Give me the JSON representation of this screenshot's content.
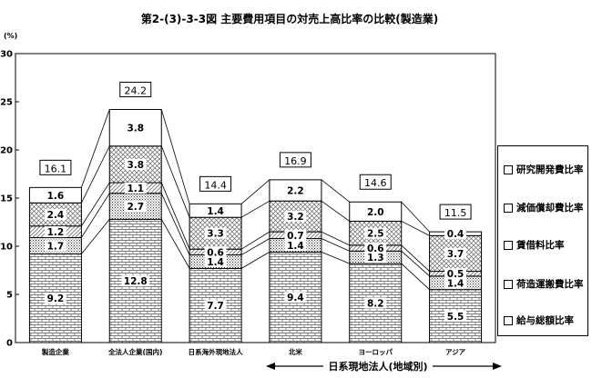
{
  "chart_data": {
    "type": "bar",
    "stacked": true,
    "title": "第2-(3)-3-3図 主要費用項目の対売上高比率の比較(製造業)",
    "ylabel": "(%)",
    "ylim": [
      0,
      30
    ],
    "yticks": [
      "0",
      "5",
      "10",
      "15",
      "20",
      "25",
      "30"
    ],
    "categories": [
      "製造企業",
      "全法人企業(国内)",
      "日系海外現地法人",
      "北米",
      "ヨーロッパ",
      "アジア"
    ],
    "group_label": "日系現地法人(地域別)",
    "totals": [
      16.1,
      24.2,
      14.4,
      16.9,
      14.6,
      11.5
    ],
    "total_labels": [
      "16.1",
      "24.2",
      "14.4",
      "16.9",
      "14.6",
      "11.5"
    ],
    "series": [
      {
        "name": "給与総額比率",
        "pattern": "bricks",
        "values": [
          9.2,
          12.8,
          7.7,
          9.4,
          8.2,
          5.5
        ],
        "labels": [
          "9.2",
          "12.8",
          "7.7",
          "9.4",
          "8.2",
          "5.5"
        ]
      },
      {
        "name": "荷造運搬費比率",
        "pattern": "dots",
        "values": [
          1.7,
          2.7,
          1.4,
          1.4,
          1.3,
          1.4
        ],
        "labels": [
          "1.7",
          "2.7",
          "1.4",
          "1.4",
          "1.3",
          "1.4"
        ]
      },
      {
        "name": "賃借料比率",
        "pattern": "diagonal",
        "values": [
          1.2,
          1.1,
          0.6,
          0.7,
          0.6,
          0.5
        ],
        "labels": [
          "1.2",
          "1.1",
          "0.6",
          "0.7",
          "0.6",
          "0.5"
        ]
      },
      {
        "name": "減価償却費比率",
        "pattern": "crosshatch",
        "values": [
          2.4,
          3.8,
          3.3,
          3.2,
          2.5,
          3.7
        ],
        "labels": [
          "2.4",
          "3.8",
          "3.3",
          "3.2",
          "2.5",
          "3.7"
        ]
      },
      {
        "name": "研究開発費比率",
        "pattern": "white",
        "values": [
          1.6,
          3.8,
          1.4,
          2.2,
          2.0,
          0.4
        ],
        "labels": [
          "1.6",
          "3.8",
          "1.4",
          "2.2",
          "2.0",
          "0.4"
        ]
      }
    ],
    "legend_order": [
      "研究開発費比率",
      "減価償却費比率",
      "賃借料比率",
      "荷造運搬費比率",
      "給与総額比率"
    ],
    "legend_position": "right",
    "grid": false,
    "connector_lines": true
  }
}
